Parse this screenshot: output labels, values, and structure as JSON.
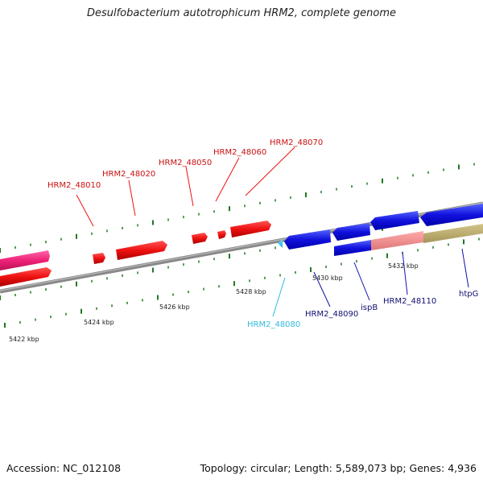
{
  "title": "Desulfobacterium autotrophicum HRM2, complete genome",
  "footer": {
    "accession": "Accession: NC_012108",
    "summary": "Topology: circular; Length: 5,589,073 bp; Genes: 4,936"
  },
  "colors": {
    "forward_gene": "#ee1111",
    "forward_label": "#cc1111",
    "reverse_gene": "#1111dd",
    "reverse_label": "#101070",
    "highlight_label": "#33bbdd",
    "pink_gene": "#ee2277",
    "salmon_gene": "#ee8888",
    "olive_gene": "#bbaa66",
    "tick": "#227722",
    "backbone": "#888888"
  },
  "kbp_labels": [
    "5422 kbp",
    "5424 kbp",
    "5426 kbp",
    "5428 kbp",
    "5430 kbp",
    "5432 kbp"
  ],
  "forward_labels": [
    "HRM2_48010",
    "HRM2_48020",
    "HRM2_48050",
    "HRM2_48060",
    "HRM2_48070"
  ],
  "reverse_labels": [
    "HRM2_48080",
    "HRM2_48090",
    "ispB",
    "HRM2_48110",
    "htpG"
  ]
}
